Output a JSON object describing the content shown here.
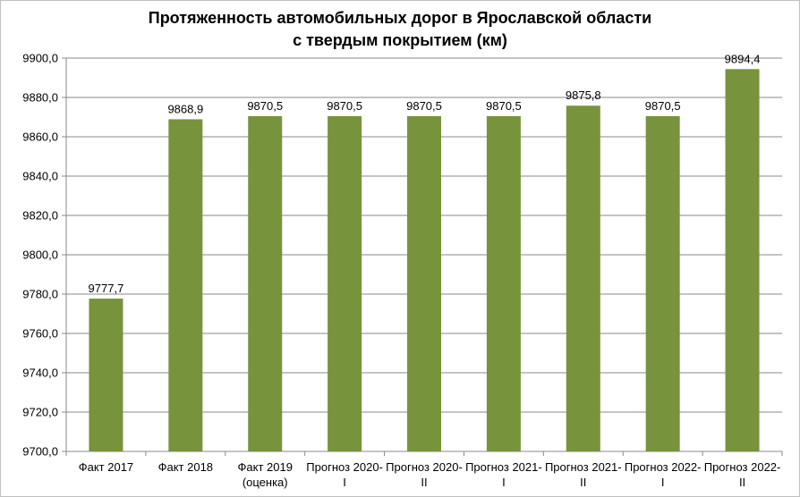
{
  "chart_data": {
    "type": "bar",
    "title_line1": "Протяженность автомобильных дорог в Ярославской области",
    "title_line2": "с твердым покрытием (км)",
    "categories": [
      [
        "Факт 2017"
      ],
      [
        "Факт 2018"
      ],
      [
        "Факт 2019",
        "(оценка)"
      ],
      [
        "Прогноз 2020-",
        "I"
      ],
      [
        "Прогноз 2020-",
        "II"
      ],
      [
        "Прогноз 2021-",
        "I"
      ],
      [
        "Прогноз 2021-",
        "II"
      ],
      [
        "Прогноз 2022-",
        "I"
      ],
      [
        "Прогноз 2022-",
        "II"
      ]
    ],
    "values": [
      9777.7,
      9868.9,
      9870.5,
      9870.5,
      9870.5,
      9870.5,
      9875.8,
      9870.5,
      9894.4
    ],
    "value_labels": [
      "9777,7",
      "9868,9",
      "9870,5",
      "9870,5",
      "9870,5",
      "9870,5",
      "9875,8",
      "9870,5",
      "9894,4"
    ],
    "ylim": [
      9700,
      9900
    ],
    "yticks": [
      9700,
      9720,
      9740,
      9760,
      9780,
      9800,
      9820,
      9840,
      9860,
      9880,
      9900
    ],
    "ytick_labels": [
      "9700,0",
      "9720,0",
      "9740,0",
      "9760,0",
      "9780,0",
      "9800,0",
      "9820,0",
      "9840,0",
      "9860,0",
      "9880,0",
      "9900,0"
    ],
    "grid": true,
    "legend": "none",
    "bar_color": "#77933c",
    "grid_color": "#888888",
    "xlabel": "",
    "ylabel": ""
  }
}
